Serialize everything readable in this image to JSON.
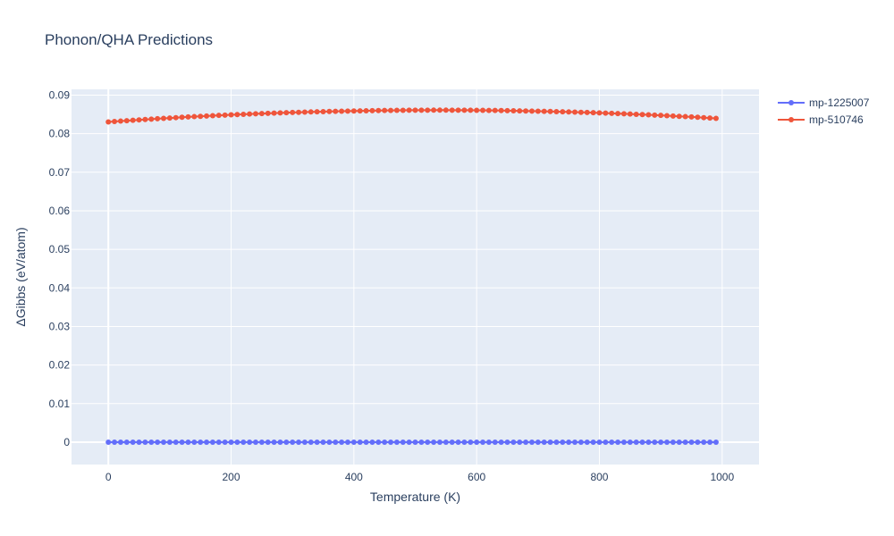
{
  "chart_data": {
    "type": "line",
    "title": "Phonon/QHA Predictions",
    "xlabel": "Temperature (K)",
    "ylabel": "ΔGibbs (eV/atom)",
    "xlim": [
      -60,
      1060
    ],
    "ylim": [
      -0.0058,
      0.0915
    ],
    "x_ticks": [
      0,
      200,
      400,
      600,
      800,
      1000
    ],
    "x_tick_labels": [
      "0",
      "200",
      "400",
      "600",
      "800",
      "1000"
    ],
    "y_ticks": [
      0,
      0.01,
      0.02,
      0.03,
      0.04,
      0.05,
      0.06,
      0.07,
      0.08,
      0.09
    ],
    "y_tick_labels": [
      "0",
      "0.01",
      "0.02",
      "0.03",
      "0.04",
      "0.05",
      "0.06",
      "0.07",
      "0.08",
      "0.09"
    ],
    "grid": true,
    "legend_position": "top-right",
    "x_start": 0,
    "x_step": 10,
    "n_points": 100,
    "series": [
      {
        "name": "mp-1225007",
        "color": "#636efa",
        "y_const": 0
      },
      {
        "name": "mp-510746",
        "color": "#ef553b",
        "y_quadratic": {
          "vertex_x": 540,
          "vertex_y": 0.0861,
          "a": -1.05e-08
        }
      }
    ]
  }
}
